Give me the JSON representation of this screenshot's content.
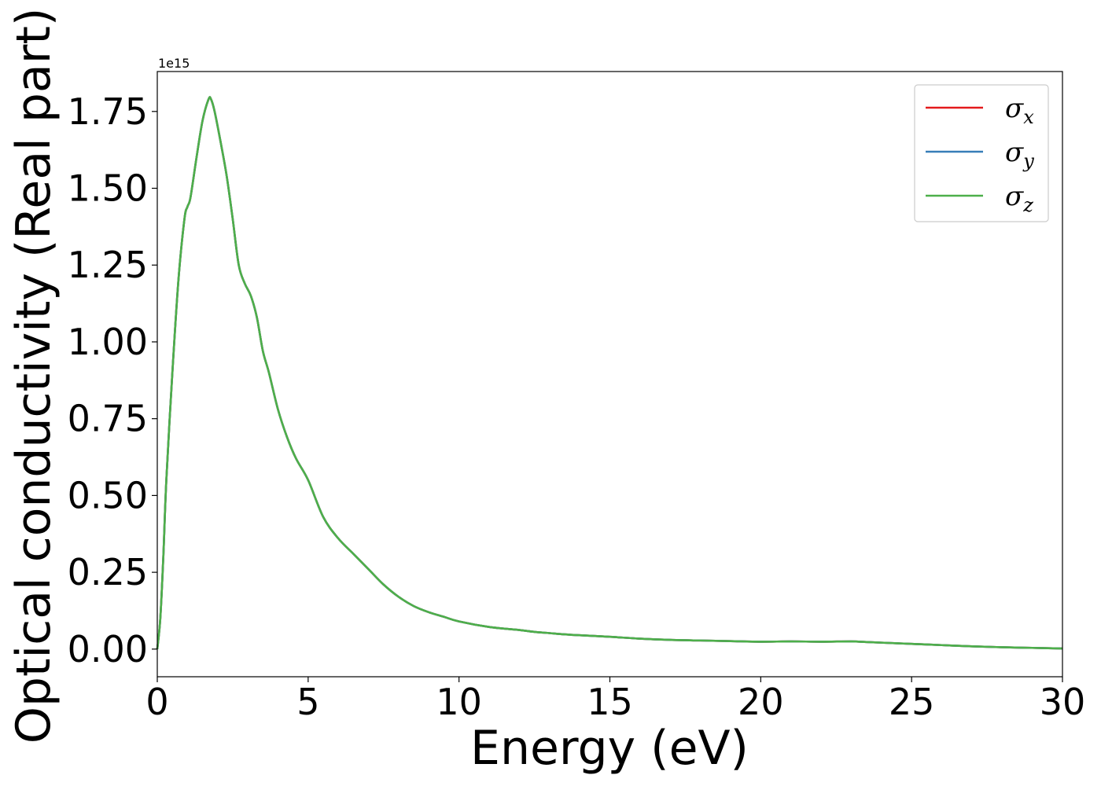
{
  "chart_data": {
    "type": "line",
    "xlabel": "Energy (eV)",
    "ylabel": "Optical conductivity (Real part)",
    "y_offset_label": "1e15",
    "xlim": [
      0,
      30
    ],
    "ylim": [
      -0.09,
      1.88
    ],
    "y_scale_factor": 1000000000000000.0,
    "xticks": [
      0,
      5,
      10,
      15,
      20,
      25,
      30
    ],
    "xtick_labels": [
      "0",
      "5",
      "10",
      "15",
      "20",
      "25",
      "30"
    ],
    "yticks": [
      0,
      0.25,
      0.5,
      0.75,
      1.0,
      1.25,
      1.5,
      1.75
    ],
    "ytick_labels": [
      "0.00",
      "0.25",
      "0.50",
      "0.75",
      "1.00",
      "1.25",
      "1.50",
      "1.75"
    ],
    "grid": false,
    "legend_position": "top-right",
    "x": [
      0,
      0.1,
      0.2,
      0.3,
      0.5,
      0.7,
      0.9,
      1.0,
      1.1,
      1.3,
      1.5,
      1.7,
      1.78,
      1.9,
      2.1,
      2.3,
      2.5,
      2.7,
      2.9,
      3.1,
      3.3,
      3.5,
      3.7,
      4.0,
      4.3,
      4.6,
      5.0,
      5.5,
      6.0,
      6.5,
      7.0,
      7.5,
      8.0,
      8.5,
      9.0,
      9.5,
      10,
      11,
      12,
      12.5,
      13,
      13.5,
      14,
      15,
      16,
      17,
      18,
      19,
      20,
      21,
      22,
      23,
      23.5,
      24,
      25,
      26,
      27,
      28,
      29,
      30
    ],
    "series": [
      {
        "name": "σx",
        "color": "#e41a1c",
        "values": [
          0.0,
          0.1,
          0.3,
          0.55,
          0.9,
          1.2,
          1.4,
          1.44,
          1.47,
          1.6,
          1.72,
          1.79,
          1.79,
          1.75,
          1.65,
          1.54,
          1.4,
          1.25,
          1.19,
          1.15,
          1.08,
          0.97,
          0.9,
          0.78,
          0.69,
          0.62,
          0.55,
          0.43,
          0.36,
          0.31,
          0.26,
          0.21,
          0.17,
          0.14,
          0.12,
          0.105,
          0.09,
          0.072,
          0.062,
          0.056,
          0.052,
          0.048,
          0.045,
          0.04,
          0.034,
          0.03,
          0.028,
          0.026,
          0.024,
          0.025,
          0.024,
          0.025,
          0.023,
          0.021,
          0.017,
          0.013,
          0.009,
          0.006,
          0.004,
          0.002
        ]
      },
      {
        "name": "σy",
        "color": "#377eb8",
        "values": [
          0.0,
          0.1,
          0.3,
          0.55,
          0.9,
          1.2,
          1.4,
          1.44,
          1.47,
          1.6,
          1.72,
          1.79,
          1.79,
          1.75,
          1.65,
          1.54,
          1.4,
          1.25,
          1.19,
          1.15,
          1.08,
          0.97,
          0.9,
          0.78,
          0.69,
          0.62,
          0.55,
          0.43,
          0.36,
          0.31,
          0.26,
          0.21,
          0.17,
          0.14,
          0.12,
          0.105,
          0.09,
          0.072,
          0.062,
          0.056,
          0.052,
          0.048,
          0.045,
          0.04,
          0.034,
          0.03,
          0.028,
          0.026,
          0.024,
          0.025,
          0.024,
          0.025,
          0.023,
          0.021,
          0.017,
          0.013,
          0.009,
          0.006,
          0.004,
          0.002
        ]
      },
      {
        "name": "σz",
        "color": "#4daf4a",
        "values": [
          0.0,
          0.1,
          0.3,
          0.55,
          0.9,
          1.2,
          1.4,
          1.44,
          1.47,
          1.6,
          1.72,
          1.79,
          1.79,
          1.75,
          1.65,
          1.54,
          1.4,
          1.25,
          1.19,
          1.15,
          1.08,
          0.97,
          0.9,
          0.78,
          0.69,
          0.62,
          0.55,
          0.43,
          0.36,
          0.31,
          0.26,
          0.21,
          0.17,
          0.14,
          0.12,
          0.105,
          0.09,
          0.072,
          0.062,
          0.056,
          0.052,
          0.048,
          0.045,
          0.04,
          0.034,
          0.03,
          0.028,
          0.026,
          0.024,
          0.025,
          0.024,
          0.025,
          0.023,
          0.021,
          0.017,
          0.013,
          0.009,
          0.006,
          0.004,
          0.002
        ]
      }
    ],
    "legend": [
      {
        "symbol": "σ",
        "subscript": "x"
      },
      {
        "symbol": "σ",
        "subscript": "y"
      },
      {
        "symbol": "σ",
        "subscript": "z"
      }
    ]
  }
}
